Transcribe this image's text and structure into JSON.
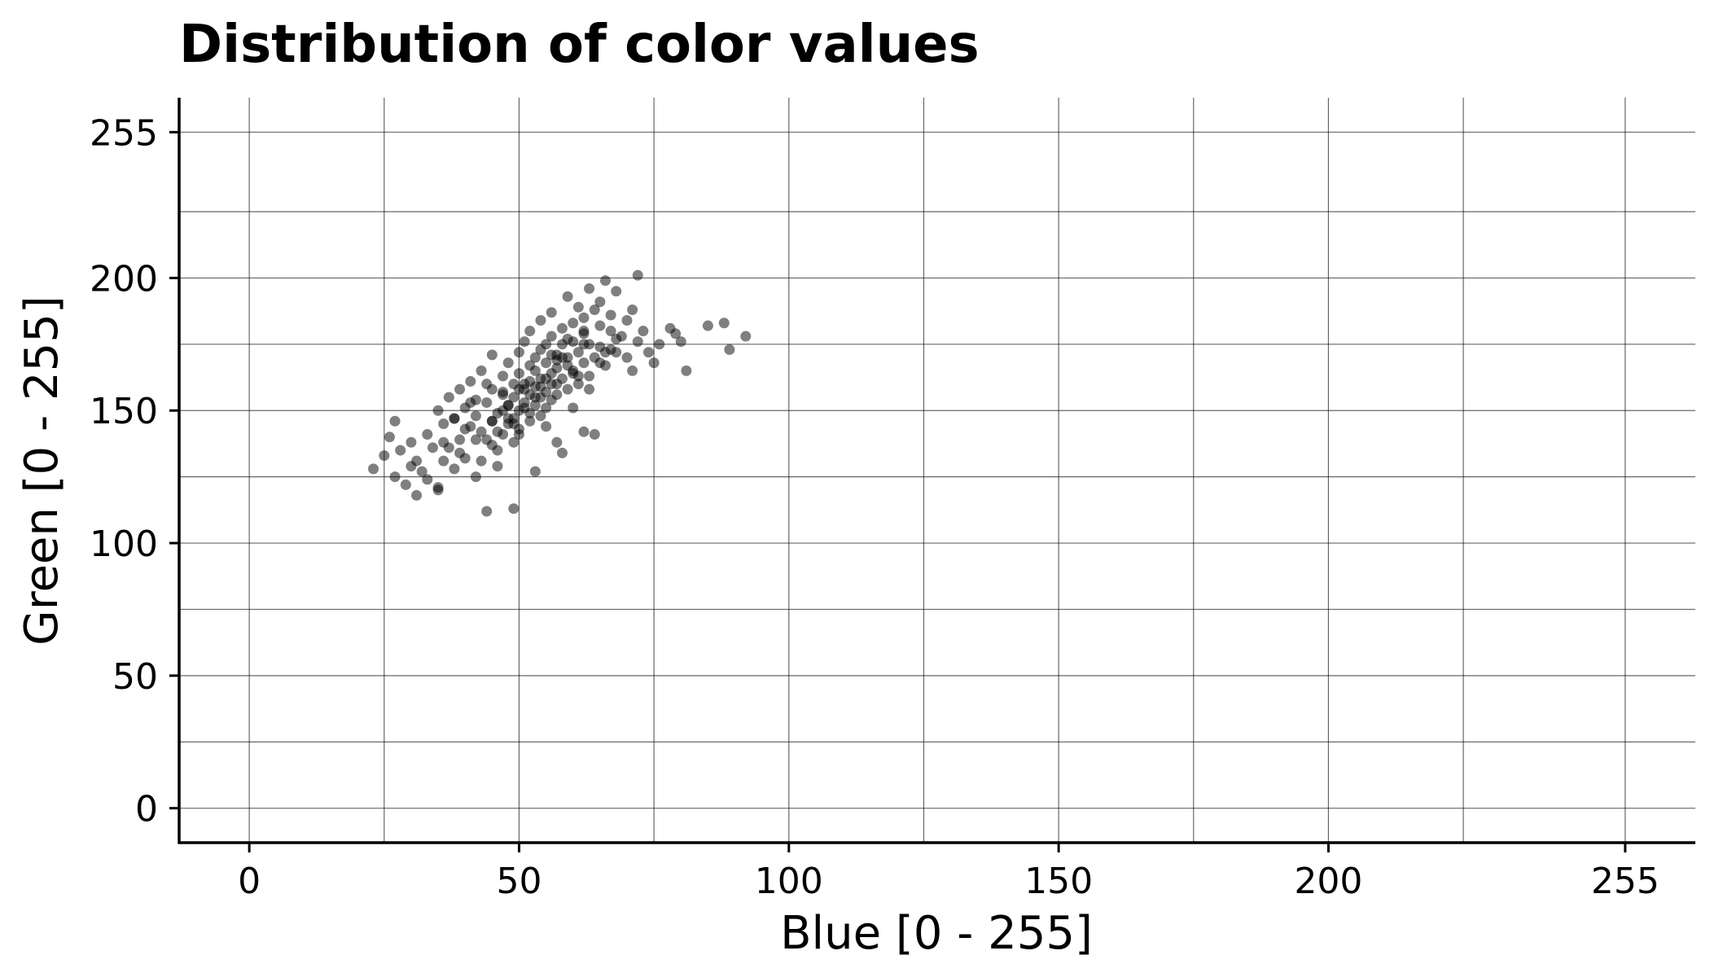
{
  "chart_data": {
    "type": "scatter",
    "title": "Distribution of color values",
    "xlabel": "Blue [0 - 255]",
    "ylabel": "Green [0 - 255]",
    "xlim": [
      -13,
      268
    ],
    "ylim": [
      -13,
      268
    ],
    "xticks": [
      0,
      50,
      100,
      150,
      200,
      255
    ],
    "yticks": [
      0,
      50,
      100,
      150,
      200,
      255
    ],
    "grid": true,
    "marker_color": "#000000",
    "marker_alpha": 0.5,
    "series": [
      {
        "x": [
          23,
          25,
          26,
          27,
          27,
          28,
          29,
          30,
          31,
          31,
          32,
          33,
          34,
          35,
          35,
          36,
          36,
          37,
          38,
          38,
          39,
          39,
          40,
          40,
          41,
          41,
          42,
          42,
          43,
          43,
          44,
          44,
          45,
          45,
          45,
          46,
          46,
          47,
          47,
          47,
          48,
          48,
          48,
          49,
          49,
          49,
          50,
          50,
          50,
          50,
          51,
          51,
          51,
          52,
          52,
          52,
          52,
          53,
          53,
          53,
          54,
          54,
          54,
          54,
          55,
          55,
          55,
          55,
          56,
          56,
          56,
          56,
          57,
          57,
          57,
          58,
          58,
          58,
          59,
          59,
          59,
          60,
          60,
          60,
          61,
          61,
          61,
          62,
          62,
          62,
          63,
          63,
          63,
          64,
          64,
          65,
          65,
          65,
          66,
          66,
          67,
          67,
          68,
          68,
          69,
          70,
          70,
          71,
          72,
          72,
          73,
          74,
          75,
          76,
          78,
          79,
          80,
          81,
          85,
          88,
          89,
          92,
          44,
          49,
          53,
          58,
          62,
          46,
          42,
          35,
          30,
          57,
          55,
          64,
          71,
          47,
          51,
          60,
          37,
          33,
          66,
          54,
          61,
          48,
          52,
          56,
          59,
          43,
          50,
          45,
          53,
          57,
          63,
          67,
          40,
          38,
          41,
          36,
          44,
          49,
          52,
          55,
          58,
          60,
          62,
          65,
          68,
          47,
          50,
          53,
          56,
          59,
          62,
          46,
          49,
          51,
          54,
          57,
          39,
          42,
          45,
          48
        ],
        "y": [
          128,
          133,
          140,
          146,
          125,
          135,
          122,
          138,
          118,
          131,
          127,
          141,
          136,
          150,
          121,
          145,
          131,
          155,
          147,
          128,
          158,
          139,
          132,
          151,
          161,
          144,
          148,
          154,
          165,
          142,
          139,
          153,
          146,
          158,
          171,
          135,
          149,
          163,
          156,
          141,
          152,
          168,
          147,
          160,
          138,
          155,
          172,
          150,
          164,
          143,
          158,
          176,
          153,
          167,
          161,
          146,
          180,
          159,
          170,
          155,
          148,
          173,
          162,
          184,
          157,
          168,
          175,
          151,
          164,
          178,
          160,
          187,
          171,
          156,
          166,
          181,
          162,
          175,
          193,
          158,
          170,
          183,
          165,
          176,
          189,
          160,
          172,
          185,
          168,
          179,
          196,
          163,
          175,
          188,
          170,
          182,
          174,
          191,
          199,
          167,
          180,
          186,
          172,
          195,
          178,
          184,
          170,
          188,
          201,
          176,
          180,
          172,
          168,
          175,
          181,
          179,
          176,
          165,
          182,
          183,
          173,
          178,
          112,
          113,
          127,
          134,
          142,
          129,
          125,
          120,
          129,
          138,
          144,
          141,
          165,
          157,
          160,
          151,
          136,
          124,
          172,
          159,
          163,
          145,
          149,
          154,
          167,
          131,
          141,
          137,
          152,
          169,
          158,
          173,
          143,
          147,
          153,
          138,
          160,
          145,
          156,
          162,
          170,
          164,
          175,
          168,
          177,
          150,
          158,
          165,
          171,
          177,
          180,
          142,
          147,
          151,
          155,
          160,
          134,
          139,
          146,
          152
        ]
      }
    ]
  }
}
